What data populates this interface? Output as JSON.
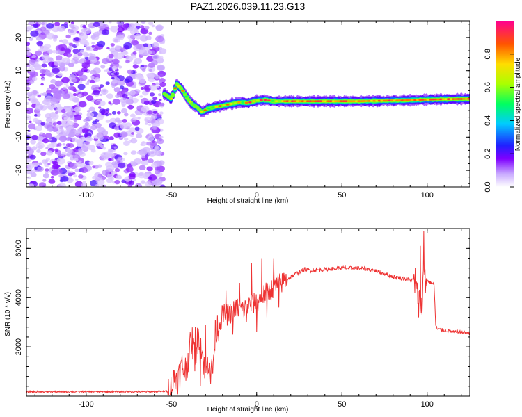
{
  "title": "PAZ1.2026.039.11.23.G13",
  "chart_data": [
    {
      "type": "heatmap",
      "xlabel": "Height of straight line (km)",
      "ylabel": "Frequency (Hz)",
      "xlim": [
        -135,
        125
      ],
      "ylim": [
        -25,
        25
      ],
      "xticks": [
        -100,
        -50,
        0,
        50,
        100
      ],
      "xtick_labels": [
        "-100",
        "-50",
        "0",
        "50",
        "100"
      ],
      "yticks": [
        -20,
        -10,
        0,
        10,
        20
      ],
      "ytick_labels": [
        "-20",
        "-10",
        "0",
        "10",
        "20"
      ],
      "noise_region": [
        -135,
        -55
      ],
      "ridge_x": [
        -54,
        -50,
        -47,
        -44,
        -41,
        -38,
        -35,
        -32,
        -29,
        -25,
        -20,
        -15,
        -10,
        -5,
        0,
        5,
        10,
        15,
        20,
        30,
        40,
        50,
        60,
        70,
        80,
        90,
        100,
        110,
        125
      ],
      "ridge_y": [
        3,
        1.5,
        6,
        4.5,
        2,
        0,
        -1,
        -2.5,
        -1.5,
        -1,
        -0.5,
        0,
        0.5,
        0.3,
        1,
        1.2,
        0.8,
        0.8,
        0.8,
        0.8,
        0.8,
        0.8,
        0.8,
        0.9,
        1.0,
        1.1,
        1.3,
        1.4,
        1.5
      ],
      "colorbar": {
        "label": "Normalized spectral amplitude",
        "ticks": [
          0.0,
          0.2,
          0.4,
          0.6,
          0.8
        ],
        "tick_labels": [
          "0.0",
          "0.2",
          "0.4",
          "0.6",
          "0.8"
        ],
        "range": [
          0,
          1
        ]
      }
    },
    {
      "type": "line",
      "color": "#ee3333",
      "xlabel": "Height of straight line (km)",
      "ylabel": "SNR (10 * v/v)",
      "xlim": [
        -135,
        125
      ],
      "ylim": [
        0,
        6800
      ],
      "xticks": [
        -100,
        -50,
        0,
        50,
        100
      ],
      "xtick_labels": [
        "-100",
        "-50",
        "0",
        "50",
        "100"
      ],
      "yticks": [
        2000,
        4000,
        6000
      ],
      "ytick_labels": [
        "2000",
        "4000",
        "6000"
      ],
      "x": [
        -135,
        -120,
        -100,
        -80,
        -60,
        -52,
        -50,
        -48,
        -46,
        -44,
        -42,
        -40,
        -38,
        -36,
        -34,
        -32,
        -30,
        -28,
        -26,
        -24,
        -22,
        -20,
        -16,
        -12,
        -8,
        -4,
        0,
        4,
        8,
        12,
        16,
        20,
        24,
        28,
        32,
        40,
        50,
        60,
        66,
        72,
        80,
        88,
        92,
        95,
        97,
        98,
        100,
        102,
        104,
        105,
        106,
        108,
        112,
        116,
        120,
        125
      ],
      "y": [
        180,
        180,
        180,
        180,
        180,
        200,
        300,
        800,
        700,
        1200,
        1000,
        1600,
        2300,
        1500,
        2600,
        1800,
        900,
        1600,
        900,
        2700,
        2900,
        3300,
        3300,
        3600,
        3500,
        3700,
        3800,
        4100,
        4300,
        4500,
        4650,
        4850,
        5000,
        5150,
        5100,
        5150,
        5200,
        5200,
        5150,
        5050,
        4850,
        4750,
        4700,
        4000,
        3800,
        5200,
        4700,
        4600,
        4550,
        2900,
        2700,
        2700,
        2650,
        2600,
        2600,
        2550
      ],
      "spikes": [
        {
          "x": -36,
          "y": 2800
        },
        {
          "x": -33,
          "y": 400
        },
        {
          "x": -30,
          "y": 2900
        },
        {
          "x": -27,
          "y": 500
        },
        {
          "x": -18,
          "y": 4300
        },
        {
          "x": -14,
          "y": 2500
        },
        {
          "x": -10,
          "y": 4600
        },
        {
          "x": -6,
          "y": 3000
        },
        {
          "x": -3,
          "y": 5400
        },
        {
          "x": 0,
          "y": 2600
        },
        {
          "x": 3,
          "y": 5600
        },
        {
          "x": 6,
          "y": 3200
        },
        {
          "x": 10,
          "y": 5600
        },
        {
          "x": 13,
          "y": 3600
        },
        {
          "x": 16,
          "y": 5000
        },
        {
          "x": 93,
          "y": 5200
        },
        {
          "x": 95,
          "y": 3200
        },
        {
          "x": 96,
          "y": 6100
        },
        {
          "x": 97,
          "y": 3300
        },
        {
          "x": 98,
          "y": 6700
        },
        {
          "x": 99,
          "y": 4200
        }
      ]
    }
  ]
}
